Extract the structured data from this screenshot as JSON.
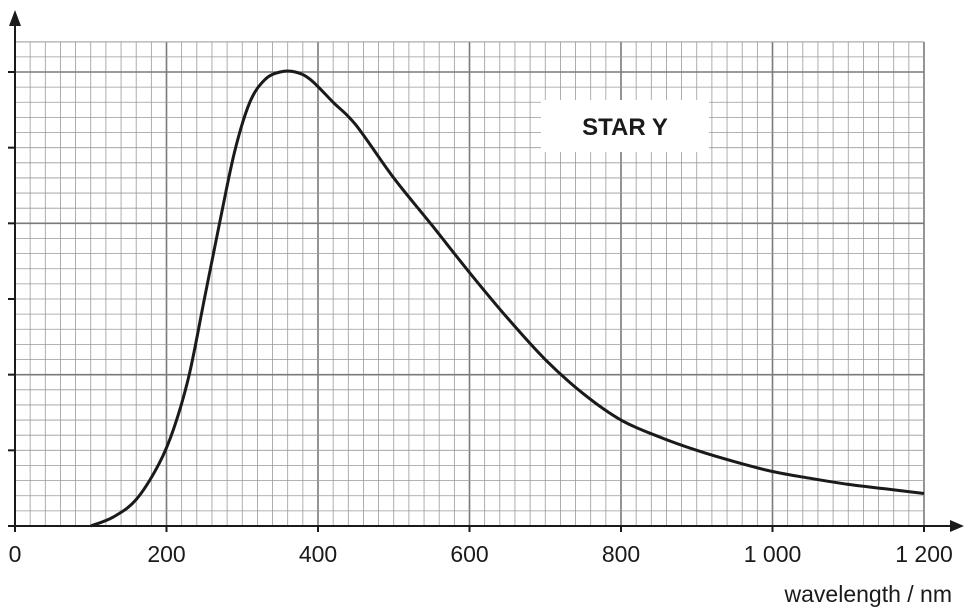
{
  "chart_data": {
    "type": "line",
    "title": "",
    "annotation": "STAR Y",
    "xlabel": "wavelength / nm",
    "ylabel": "",
    "xlim": [
      0,
      1200
    ],
    "ylim": [
      0,
      6.3
    ],
    "x_ticks": [
      0,
      200,
      400,
      600,
      800,
      1000,
      1200
    ],
    "x_tick_labels": [
      "0",
      "200",
      "400",
      "600",
      "800",
      "1 000",
      "1 200"
    ],
    "y_tick_count": 7,
    "grid": true,
    "series": [
      {
        "values_x": [
          100,
          130,
          160,
          190,
          210,
          230,
          250,
          270,
          290,
          310,
          330,
          350,
          370,
          390,
          420,
          450,
          500,
          550,
          600,
          650,
          700,
          750,
          800,
          850,
          900,
          950,
          1000,
          1050,
          1100,
          1150,
          1200
        ],
        "values_y": [
          0.0,
          0.12,
          0.35,
          0.82,
          1.3,
          2.0,
          3.0,
          4.0,
          4.95,
          5.6,
          5.9,
          6.0,
          6.0,
          5.9,
          5.6,
          5.3,
          4.6,
          3.98,
          3.35,
          2.75,
          2.2,
          1.75,
          1.4,
          1.18,
          1.0,
          0.85,
          0.72,
          0.63,
          0.55,
          0.49,
          0.43
        ]
      }
    ],
    "colors": {
      "line": "#1a1a1a",
      "grid_minor": "#9a9a9a",
      "grid_major": "#7a7a7a"
    }
  }
}
